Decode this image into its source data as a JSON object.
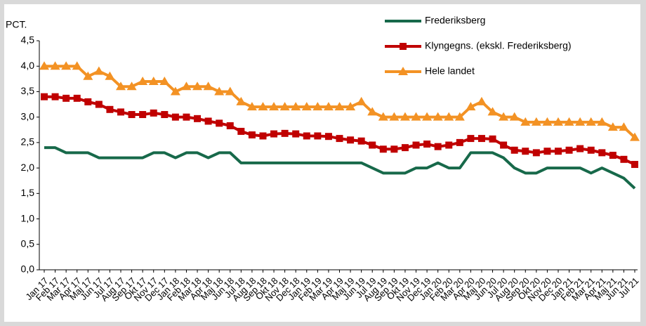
{
  "chart_data": {
    "type": "line",
    "y_label": "PCT.",
    "categories": [
      "Jan 17",
      "Feb 17",
      "Mar 17",
      "Apr 17",
      "Maj 17",
      "Jun 17",
      "Jul 17",
      "Aug 17",
      "Sep 17",
      "Okt 17",
      "Nov 17",
      "Dec 17",
      "Jan 18",
      "Feb 18",
      "Mar 18",
      "Apr 18",
      "Maj 18",
      "Jun 18",
      "Jul 18",
      "Aug 18",
      "Sep 18",
      "Okt 18",
      "Nov 18",
      "Dec 18",
      "Jan 19",
      "Feb 19",
      "Mar 19",
      "Apr 19",
      "Maj 19",
      "Jun 19",
      "Jul 19",
      "Aug 19",
      "Sep 19",
      "Okt 19",
      "Nov 19",
      "Dec 19",
      "Jan 20",
      "Feb 20",
      "Mar 20",
      "Apr 20",
      "Maj 20",
      "Jun 20",
      "Jul 20",
      "Aug 20",
      "Sep 20",
      "Okt 20",
      "Nov 20",
      "Dec 20",
      "Jan 21",
      "Feb 21",
      "Mar 21",
      "Apr 21",
      "Maj 21",
      "Jun 21",
      "Jul 21"
    ],
    "series": [
      {
        "name": "Frederiksberg",
        "color": "#17694a",
        "marker": "none",
        "values": [
          2.4,
          2.4,
          2.3,
          2.3,
          2.3,
          2.2,
          2.2,
          2.2,
          2.2,
          2.2,
          2.3,
          2.3,
          2.2,
          2.3,
          2.3,
          2.2,
          2.3,
          2.3,
          2.1,
          2.1,
          2.1,
          2.1,
          2.1,
          2.1,
          2.1,
          2.1,
          2.1,
          2.1,
          2.1,
          2.1,
          2.0,
          1.9,
          1.9,
          1.9,
          2.0,
          2.0,
          2.1,
          2.0,
          2.0,
          2.3,
          2.3,
          2.3,
          2.2,
          2.0,
          1.9,
          1.9,
          2.0,
          2.0,
          2.0,
          2.0,
          1.9,
          2.0,
          1.9,
          1.8,
          1.6
        ]
      },
      {
        "name": "Klyngegns. (ekskl. Frederiksberg)",
        "color": "#c00000",
        "marker": "square",
        "values": [
          3.4,
          3.4,
          3.37,
          3.37,
          3.3,
          3.25,
          3.15,
          3.1,
          3.05,
          3.05,
          3.08,
          3.05,
          3.0,
          3.0,
          2.97,
          2.92,
          2.88,
          2.83,
          2.72,
          2.65,
          2.63,
          2.67,
          2.68,
          2.67,
          2.63,
          2.63,
          2.62,
          2.58,
          2.55,
          2.53,
          2.45,
          2.37,
          2.37,
          2.4,
          2.45,
          2.47,
          2.42,
          2.45,
          2.5,
          2.58,
          2.58,
          2.57,
          2.45,
          2.35,
          2.33,
          2.3,
          2.33,
          2.33,
          2.35,
          2.38,
          2.35,
          2.3,
          2.25,
          2.17,
          2.07
        ]
      },
      {
        "name": "Hele landet",
        "color": "#f39224",
        "marker": "triangle",
        "values": [
          4.0,
          4.0,
          4.0,
          4.0,
          3.8,
          3.9,
          3.8,
          3.6,
          3.6,
          3.7,
          3.7,
          3.7,
          3.5,
          3.6,
          3.6,
          3.6,
          3.5,
          3.5,
          3.3,
          3.2,
          3.2,
          3.2,
          3.2,
          3.2,
          3.2,
          3.2,
          3.2,
          3.2,
          3.2,
          3.3,
          3.1,
          3.0,
          3.0,
          3.0,
          3.0,
          3.0,
          3.0,
          3.0,
          3.0,
          3.2,
          3.3,
          3.1,
          3.0,
          3.0,
          2.9,
          2.9,
          2.9,
          2.9,
          2.9,
          2.9,
          2.9,
          2.9,
          2.8,
          2.8,
          2.6
        ]
      }
    ],
    "ylim": [
      0,
      4.5
    ],
    "yticks": [
      {
        "value": 0,
        "label": "0,0"
      },
      {
        "value": 0.5,
        "label": "0,5"
      },
      {
        "value": 1,
        "label": "1,0"
      },
      {
        "value": 1.5,
        "label": "1,5"
      },
      {
        "value": 2,
        "label": "2,0"
      },
      {
        "value": 2.5,
        "label": "2,5"
      },
      {
        "value": 3,
        "label": "3,0"
      },
      {
        "value": 3.5,
        "label": "3,5"
      },
      {
        "value": 4,
        "label": "4,0"
      },
      {
        "value": 4.5,
        "label": "4,5"
      }
    ],
    "grid": false,
    "legend": "top-right"
  }
}
